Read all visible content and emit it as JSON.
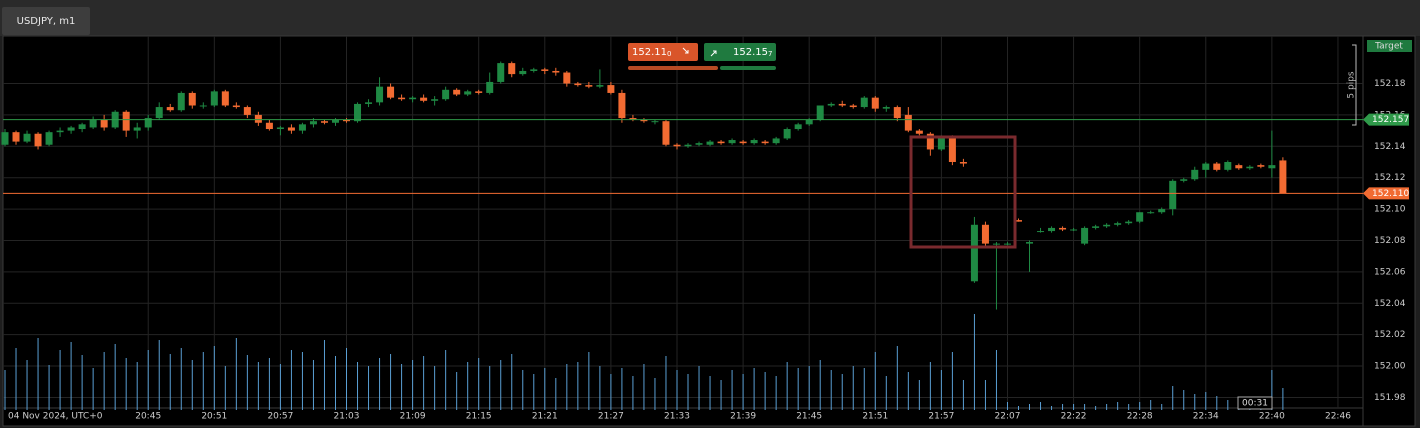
{
  "tab": {
    "title": "USDJPY, m1"
  },
  "quote": {
    "bid_main": "152.11",
    "bid_pip": "0",
    "ask_main": "152.15",
    "ask_pip": "7"
  },
  "chart_data": {
    "type": "candlestick",
    "up_color": "#1f8a44",
    "down_color": "#f26b32",
    "volume_color": "#5a9fd4",
    "date_label": "04 Nov 2024, UTC+0",
    "target_label": "Target",
    "pips_label": "5 pips",
    "timer": "00:31",
    "ask_line": {
      "value": 152.157,
      "label": "152.157",
      "color": "#2f9a4a"
    },
    "bid_line": {
      "value": 152.11,
      "label": "152.110",
      "color": "#f26b32"
    },
    "xlim": [
      0,
      123
    ],
    "ylim": [
      151.972,
      152.209
    ],
    "volume_lim": [
      0,
      100
    ],
    "xticks": [
      {
        "value": 13,
        "label": "20:45"
      },
      {
        "value": 19,
        "label": "20:51"
      },
      {
        "value": 25,
        "label": "20:57"
      },
      {
        "value": 31,
        "label": "21:03"
      },
      {
        "value": 37,
        "label": "21:09"
      },
      {
        "value": 43,
        "label": "21:15"
      },
      {
        "value": 49,
        "label": "21:21"
      },
      {
        "value": 55,
        "label": "21:27"
      },
      {
        "value": 61,
        "label": "21:33"
      },
      {
        "value": 67,
        "label": "21:39"
      },
      {
        "value": 73,
        "label": "21:45"
      },
      {
        "value": 79,
        "label": "21:51"
      },
      {
        "value": 85,
        "label": "21:57"
      },
      {
        "value": 91,
        "label": "22:07"
      },
      {
        "value": 97,
        "label": "22:22"
      },
      {
        "value": 103,
        "label": "22:28"
      },
      {
        "value": 109,
        "label": "22:34"
      },
      {
        "value": 115,
        "label": "22:40"
      },
      {
        "value": 121,
        "label": "22:46"
      }
    ],
    "yticks": [
      {
        "value": 151.98,
        "label": "151.98"
      },
      {
        "value": 152,
        "label": "152.00"
      },
      {
        "value": 152.02,
        "label": "152.02"
      },
      {
        "value": 152.04,
        "label": "152.04"
      },
      {
        "value": 152.06,
        "label": "152.06"
      },
      {
        "value": 152.08,
        "label": "152.08"
      },
      {
        "value": 152.1,
        "label": "152.10"
      },
      {
        "value": 152.12,
        "label": "152.12"
      },
      {
        "value": 152.14,
        "label": "152.14"
      },
      {
        "value": 152.16,
        "label": "152.16"
      },
      {
        "value": 152.18,
        "label": "152.18"
      }
    ],
    "ohlc": [
      [
        152.141,
        152.151,
        152.14,
        152.149
      ],
      [
        152.149,
        152.15,
        152.141,
        152.143
      ],
      [
        152.143,
        152.15,
        152.142,
        152.148
      ],
      [
        152.148,
        152.149,
        152.138,
        152.14
      ],
      [
        152.141,
        152.15,
        152.14,
        152.149
      ],
      [
        152.149,
        152.152,
        152.146,
        152.15
      ],
      [
        152.15,
        152.153,
        152.148,
        152.152
      ],
      [
        152.151,
        152.155,
        152.149,
        152.154
      ],
      [
        152.152,
        152.159,
        152.151,
        152.157
      ],
      [
        152.157,
        152.16,
        152.15,
        152.152
      ],
      [
        152.152,
        152.163,
        152.151,
        152.162
      ],
      [
        152.162,
        152.163,
        152.146,
        152.15
      ],
      [
        152.15,
        152.155,
        152.145,
        152.152
      ],
      [
        152.152,
        152.16,
        152.15,
        152.158
      ],
      [
        152.158,
        152.168,
        152.157,
        152.165
      ],
      [
        152.165,
        152.167,
        152.162,
        152.163
      ],
      [
        152.163,
        152.175,
        152.162,
        152.174
      ],
      [
        152.174,
        152.175,
        152.164,
        152.166
      ],
      [
        152.166,
        152.168,
        152.164,
        152.166
      ],
      [
        152.166,
        152.176,
        152.165,
        152.175
      ],
      [
        152.175,
        152.176,
        152.165,
        152.166
      ],
      [
        152.166,
        152.168,
        152.164,
        152.165
      ],
      [
        152.165,
        152.166,
        152.158,
        152.16
      ],
      [
        152.16,
        152.162,
        152.153,
        152.155
      ],
      [
        152.155,
        152.157,
        152.15,
        152.151
      ],
      [
        152.151,
        152.153,
        152.147,
        152.152
      ],
      [
        152.152,
        152.154,
        152.148,
        152.15
      ],
      [
        152.15,
        152.155,
        152.148,
        152.154
      ],
      [
        152.154,
        152.158,
        152.152,
        152.156
      ],
      [
        152.156,
        152.157,
        152.154,
        152.155
      ],
      [
        152.155,
        152.158,
        152.153,
        152.157
      ],
      [
        152.157,
        152.158,
        152.155,
        152.156
      ],
      [
        152.156,
        152.168,
        152.155,
        152.167
      ],
      [
        152.167,
        152.17,
        152.165,
        152.168
      ],
      [
        152.168,
        152.184,
        152.166,
        152.178
      ],
      [
        152.178,
        152.18,
        152.17,
        152.171
      ],
      [
        152.171,
        152.173,
        152.169,
        152.17
      ],
      [
        152.17,
        152.172,
        152.168,
        152.171
      ],
      [
        152.171,
        152.173,
        152.168,
        152.169
      ],
      [
        152.169,
        152.172,
        152.166,
        152.17
      ],
      [
        152.17,
        152.178,
        152.169,
        152.176
      ],
      [
        152.176,
        152.177,
        152.172,
        152.173
      ],
      [
        152.173,
        152.176,
        152.172,
        152.175
      ],
      [
        152.175,
        152.176,
        152.173,
        152.174
      ],
      [
        152.174,
        152.187,
        152.173,
        152.181
      ],
      [
        152.181,
        152.194,
        152.18,
        152.193
      ],
      [
        152.193,
        152.194,
        152.184,
        152.186
      ],
      [
        152.186,
        152.19,
        152.185,
        152.188
      ],
      [
        152.188,
        152.19,
        152.187,
        152.189
      ],
      [
        152.189,
        152.19,
        152.186,
        152.188
      ],
      [
        152.188,
        152.19,
        152.185,
        152.187
      ],
      [
        152.187,
        152.188,
        152.178,
        152.18
      ],
      [
        152.18,
        152.181,
        152.178,
        152.179
      ],
      [
        152.179,
        152.181,
        152.177,
        152.178
      ],
      [
        152.178,
        152.189,
        152.177,
        152.179
      ],
      [
        152.179,
        152.181,
        152.173,
        152.174
      ],
      [
        152.174,
        152.176,
        152.155,
        152.158
      ],
      [
        152.158,
        152.16,
        152.156,
        152.157
      ],
      [
        152.157,
        152.158,
        152.155,
        152.156
      ],
      [
        152.156,
        152.157,
        152.154,
        152.156
      ],
      [
        152.156,
        152.157,
        152.14,
        152.141
      ],
      [
        152.141,
        152.142,
        152.138,
        152.14
      ],
      [
        152.14,
        152.142,
        152.139,
        152.141
      ],
      [
        152.141,
        152.143,
        152.14,
        152.142
      ],
      [
        152.141,
        152.144,
        152.14,
        152.143
      ],
      [
        152.143,
        152.144,
        152.141,
        152.142
      ],
      [
        152.142,
        152.145,
        152.141,
        152.144
      ],
      [
        152.143,
        152.144,
        152.141,
        152.142
      ],
      [
        152.142,
        152.145,
        152.141,
        152.144
      ],
      [
        152.143,
        152.144,
        152.141,
        152.142
      ],
      [
        152.142,
        152.146,
        152.141,
        152.145
      ],
      [
        152.145,
        152.152,
        152.144,
        152.151
      ],
      [
        152.151,
        152.155,
        152.15,
        152.154
      ],
      [
        152.154,
        152.158,
        152.153,
        152.157
      ],
      [
        152.157,
        152.166,
        152.156,
        152.166
      ],
      [
        152.166,
        152.168,
        152.165,
        152.167
      ],
      [
        152.167,
        152.169,
        152.165,
        152.166
      ],
      [
        152.166,
        152.167,
        152.164,
        152.165
      ],
      [
        152.165,
        152.172,
        152.164,
        152.171
      ],
      [
        152.171,
        152.172,
        152.162,
        152.164
      ],
      [
        152.164,
        152.166,
        152.162,
        152.165
      ],
      [
        152.165,
        152.166,
        152.156,
        152.158
      ],
      [
        152.16,
        152.165,
        152.149,
        152.15
      ],
      [
        152.15,
        152.151,
        152.147,
        152.148
      ],
      [
        152.148,
        152.149,
        152.134,
        152.138
      ],
      [
        152.138,
        152.147,
        152.137,
        152.146
      ],
      [
        152.146,
        152.147,
        152.128,
        152.13
      ],
      [
        152.13,
        152.132,
        152.127,
        152.129
      ],
      [
        152.054,
        152.095,
        152.053,
        152.09
      ],
      [
        152.09,
        152.092,
        152.076,
        152.078
      ],
      [
        152.078,
        152.079,
        152.036,
        152.078
      ],
      [
        152.078,
        152.079,
        152.077,
        152.078
      ],
      [
        152.093,
        152.094,
        152.092,
        152.092
      ],
      [
        152.078,
        152.08,
        152.06,
        152.079
      ],
      [
        152.086,
        152.088,
        152.085,
        152.086
      ],
      [
        152.086,
        152.089,
        152.085,
        152.088
      ],
      [
        152.088,
        152.089,
        152.086,
        152.087
      ],
      [
        152.087,
        152.088,
        152.086,
        152.087
      ],
      [
        152.078,
        152.089,
        152.077,
        152.088
      ],
      [
        152.088,
        152.09,
        152.087,
        152.089
      ],
      [
        152.089,
        152.091,
        152.088,
        152.09
      ],
      [
        152.09,
        152.092,
        152.089,
        152.091
      ],
      [
        152.091,
        152.093,
        152.09,
        152.092
      ],
      [
        152.092,
        152.098,
        152.091,
        152.098
      ],
      [
        152.098,
        152.099,
        152.097,
        152.098
      ],
      [
        152.098,
        152.101,
        152.097,
        152.1
      ],
      [
        152.1,
        152.119,
        152.096,
        152.118
      ],
      [
        152.118,
        152.12,
        152.117,
        152.119
      ],
      [
        152.119,
        152.127,
        152.118,
        152.125
      ],
      [
        152.125,
        152.13,
        152.12,
        152.129
      ],
      [
        152.129,
        152.13,
        152.124,
        152.125
      ],
      [
        152.125,
        152.131,
        152.124,
        152.13
      ],
      [
        152.128,
        152.129,
        152.125,
        152.126
      ],
      [
        152.126,
        152.128,
        152.125,
        152.127
      ],
      [
        152.128,
        152.129,
        152.126,
        152.127
      ],
      [
        152.126,
        152.15,
        152.12,
        152.128
      ],
      [
        152.131,
        152.133,
        152.11,
        152.11
      ]
    ],
    "volumes": [
      40,
      62,
      50,
      72,
      45,
      60,
      68,
      55,
      42,
      58,
      66,
      52,
      48,
      60,
      70,
      56,
      62,
      50,
      58,
      64,
      44,
      72,
      55,
      48,
      52,
      46,
      60,
      58,
      50,
      70,
      54,
      62,
      48,
      44,
      52,
      56,
      46,
      50,
      54,
      44,
      60,
      38,
      48,
      52,
      44,
      50,
      56,
      40,
      36,
      42,
      32,
      46,
      48,
      58,
      44,
      36,
      42,
      34,
      46,
      32,
      54,
      40,
      36,
      44,
      34,
      30,
      40,
      36,
      42,
      38,
      34,
      48,
      42,
      44,
      50,
      40,
      36,
      44,
      42,
      58,
      34,
      64,
      38,
      30,
      48,
      40,
      58,
      30,
      96,
      30,
      60,
      8,
      4,
      6,
      8,
      4,
      6,
      6,
      6,
      4,
      6,
      8,
      6,
      8,
      10,
      6,
      24,
      20,
      16,
      18,
      14,
      10,
      12,
      8,
      10,
      40,
      22
    ]
  }
}
